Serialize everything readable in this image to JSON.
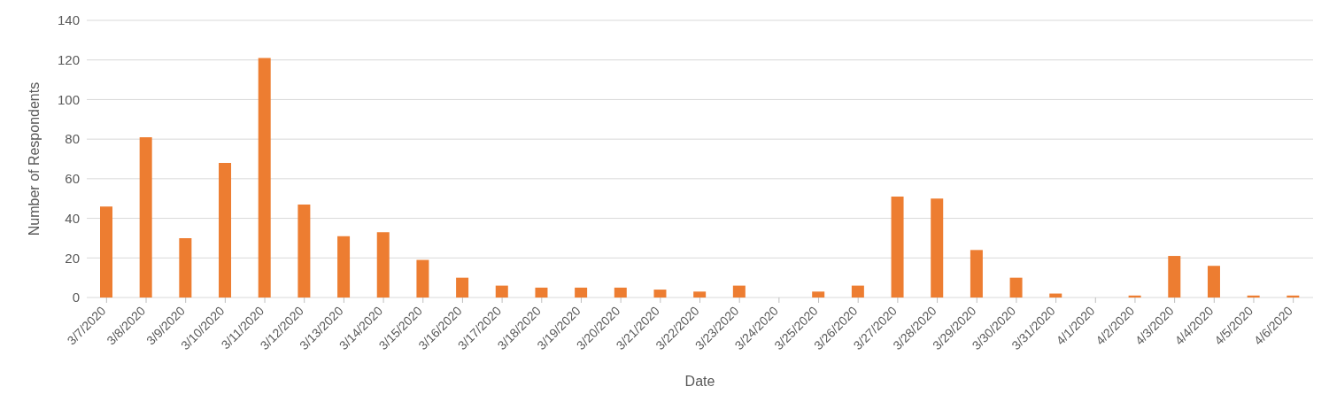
{
  "chart_data": {
    "type": "bar",
    "xlabel": "Date",
    "ylabel": "Number of Respondents",
    "categories": [
      "3/7/2020",
      "3/8/2020",
      "3/9/2020",
      "3/10/2020",
      "3/11/2020",
      "3/12/2020",
      "3/13/2020",
      "3/14/2020",
      "3/15/2020",
      "3/16/2020",
      "3/17/2020",
      "3/18/2020",
      "3/19/2020",
      "3/20/2020",
      "3/21/2020",
      "3/22/2020",
      "3/23/2020",
      "3/24/2020",
      "3/25/2020",
      "3/26/2020",
      "3/27/2020",
      "3/28/2020",
      "3/29/2020",
      "3/30/2020",
      "3/31/2020",
      "4/1/2020",
      "4/2/2020",
      "4/3/2020",
      "4/4/2020",
      "4/5/2020",
      "4/6/2020"
    ],
    "values": [
      46,
      81,
      30,
      68,
      121,
      47,
      31,
      33,
      19,
      10,
      6,
      5,
      5,
      5,
      4,
      3,
      6,
      0,
      3,
      6,
      51,
      50,
      24,
      10,
      2,
      0,
      1,
      21,
      16,
      1,
      1
    ],
    "color": "#ed7d31",
    "ylim": [
      0,
      140
    ],
    "yticks": [
      0,
      20,
      40,
      60,
      80,
      100,
      120,
      140
    ],
    "grid": "y"
  }
}
